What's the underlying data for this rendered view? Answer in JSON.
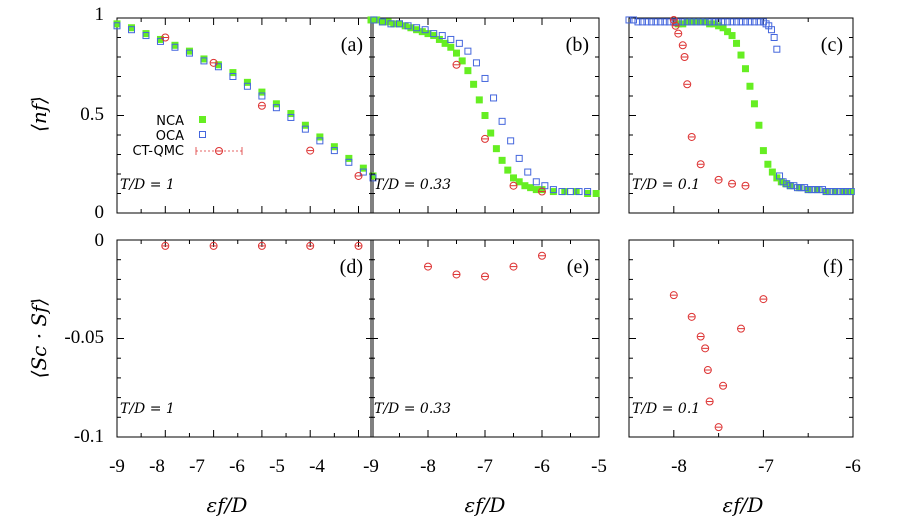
{
  "chart_data": [
    {
      "id": "a",
      "type": "scatter",
      "tag": "(a)",
      "temperature_label": "T/D = 1",
      "xlim": [
        -9,
        -3.7
      ],
      "ylim": [
        0,
        1
      ],
      "series": [
        {
          "name": "NCA",
          "points": [
            [
              -9.0,
              0.97
            ],
            [
              -8.7,
              0.95
            ],
            [
              -8.4,
              0.92
            ],
            [
              -8.1,
              0.89
            ],
            [
              -7.8,
              0.86
            ],
            [
              -7.5,
              0.83
            ],
            [
              -7.2,
              0.79
            ],
            [
              -6.9,
              0.76
            ],
            [
              -6.6,
              0.72
            ],
            [
              -6.3,
              0.67
            ],
            [
              -6.0,
              0.62
            ],
            [
              -5.7,
              0.56
            ],
            [
              -5.4,
              0.51
            ],
            [
              -5.1,
              0.45
            ],
            [
              -4.8,
              0.39
            ],
            [
              -4.5,
              0.34
            ],
            [
              -4.2,
              0.28
            ],
            [
              -3.9,
              0.23
            ],
            [
              -3.7,
              0.19
            ]
          ]
        },
        {
          "name": "OCA",
          "points": [
            [
              -9.0,
              0.96
            ],
            [
              -8.7,
              0.94
            ],
            [
              -8.4,
              0.91
            ],
            [
              -8.1,
              0.88
            ],
            [
              -7.8,
              0.85
            ],
            [
              -7.5,
              0.82
            ],
            [
              -7.2,
              0.78
            ],
            [
              -6.9,
              0.75
            ],
            [
              -6.6,
              0.7
            ],
            [
              -6.3,
              0.65
            ],
            [
              -6.0,
              0.6
            ],
            [
              -5.7,
              0.54
            ],
            [
              -5.4,
              0.49
            ],
            [
              -5.1,
              0.43
            ],
            [
              -4.8,
              0.37
            ],
            [
              -4.5,
              0.32
            ],
            [
              -4.2,
              0.26
            ],
            [
              -3.9,
              0.21
            ],
            [
              -3.7,
              0.18
            ]
          ]
        },
        {
          "name": "CT-QMC",
          "points": [
            [
              -8.0,
              0.9
            ],
            [
              -7.0,
              0.77
            ],
            [
              -6.0,
              0.55
            ],
            [
              -5.0,
              0.32
            ],
            [
              -4.0,
              0.19
            ]
          ]
        }
      ]
    },
    {
      "id": "b",
      "type": "scatter",
      "tag": "(b)",
      "temperature_label": "T/D = 0.33",
      "xlim": [
        -9,
        -5
      ],
      "ylim": [
        0,
        1
      ],
      "series": [
        {
          "name": "NCA",
          "points": [
            [
              -9.0,
              0.99
            ],
            [
              -8.9,
              0.99
            ],
            [
              -8.8,
              0.98
            ],
            [
              -8.7,
              0.98
            ],
            [
              -8.6,
              0.97
            ],
            [
              -8.5,
              0.97
            ],
            [
              -8.4,
              0.96
            ],
            [
              -8.3,
              0.95
            ],
            [
              -8.2,
              0.94
            ],
            [
              -8.1,
              0.93
            ],
            [
              -8.0,
              0.92
            ],
            [
              -7.9,
              0.91
            ],
            [
              -7.8,
              0.89
            ],
            [
              -7.7,
              0.87
            ],
            [
              -7.6,
              0.85
            ],
            [
              -7.5,
              0.82
            ],
            [
              -7.4,
              0.78
            ],
            [
              -7.3,
              0.73
            ],
            [
              -7.2,
              0.66
            ],
            [
              -7.1,
              0.58
            ],
            [
              -7.0,
              0.5
            ],
            [
              -6.9,
              0.41
            ],
            [
              -6.8,
              0.33
            ],
            [
              -6.7,
              0.27
            ],
            [
              -6.6,
              0.22
            ],
            [
              -6.5,
              0.18
            ],
            [
              -6.4,
              0.16
            ],
            [
              -6.3,
              0.14
            ],
            [
              -6.2,
              0.13
            ],
            [
              -6.1,
              0.12
            ],
            [
              -6.0,
              0.12
            ],
            [
              -5.8,
              0.11
            ],
            [
              -5.6,
              0.11
            ],
            [
              -5.4,
              0.11
            ],
            [
              -5.2,
              0.1
            ],
            [
              -5.05,
              0.1
            ]
          ]
        },
        {
          "name": "OCA",
          "points": [
            [
              -8.95,
              0.99
            ],
            [
              -8.8,
              0.98
            ],
            [
              -8.65,
              0.97
            ],
            [
              -8.5,
              0.97
            ],
            [
              -8.35,
              0.96
            ],
            [
              -8.2,
              0.95
            ],
            [
              -8.05,
              0.94
            ],
            [
              -7.9,
              0.92
            ],
            [
              -7.75,
              0.91
            ],
            [
              -7.6,
              0.89
            ],
            [
              -7.45,
              0.87
            ],
            [
              -7.3,
              0.83
            ],
            [
              -7.15,
              0.77
            ],
            [
              -7.0,
              0.69
            ],
            [
              -6.85,
              0.59
            ],
            [
              -6.7,
              0.47
            ],
            [
              -6.55,
              0.37
            ],
            [
              -6.4,
              0.28
            ],
            [
              -6.25,
              0.21
            ],
            [
              -6.1,
              0.16
            ],
            [
              -5.95,
              0.14
            ],
            [
              -5.8,
              0.12
            ],
            [
              -5.65,
              0.11
            ],
            [
              -5.5,
              0.11
            ],
            [
              -5.35,
              0.11
            ],
            [
              -5.2,
              0.11
            ]
          ]
        },
        {
          "name": "CT-QMC",
          "points": [
            [
              -7.5,
              0.76
            ],
            [
              -7.0,
              0.38
            ],
            [
              -6.5,
              0.14
            ],
            [
              -6.0,
              0.11
            ]
          ]
        }
      ]
    },
    {
      "id": "c",
      "type": "scatter",
      "tag": "(c)",
      "temperature_label": "T/D = 0.1",
      "xlim": [
        -8.5,
        -6
      ],
      "ylim": [
        0,
        1
      ],
      "series": [
        {
          "name": "NCA",
          "points": [
            [
              -7.95,
              0.97
            ],
            [
              -7.9,
              0.97
            ],
            [
              -7.85,
              0.98
            ],
            [
              -7.8,
              0.98
            ],
            [
              -7.75,
              0.98
            ],
            [
              -7.7,
              0.98
            ],
            [
              -7.65,
              0.98
            ],
            [
              -7.6,
              0.97
            ],
            [
              -7.55,
              0.97
            ],
            [
              -7.5,
              0.96
            ],
            [
              -7.45,
              0.95
            ],
            [
              -7.4,
              0.93
            ],
            [
              -7.35,
              0.91
            ],
            [
              -7.3,
              0.87
            ],
            [
              -7.25,
              0.81
            ],
            [
              -7.2,
              0.74
            ],
            [
              -7.15,
              0.65
            ],
            [
              -7.1,
              0.56
            ],
            [
              -7.05,
              0.45
            ],
            [
              -7.0,
              0.32
            ],
            [
              -6.95,
              0.25
            ],
            [
              -6.9,
              0.21
            ],
            [
              -6.85,
              0.18
            ],
            [
              -6.8,
              0.16
            ],
            [
              -6.75,
              0.15
            ],
            [
              -6.7,
              0.14
            ],
            [
              -6.6,
              0.13
            ],
            [
              -6.5,
              0.12
            ],
            [
              -6.4,
              0.12
            ],
            [
              -6.3,
              0.11
            ],
            [
              -6.2,
              0.11
            ],
            [
              -6.1,
              0.11
            ],
            [
              -6.02,
              0.11
            ]
          ]
        },
        {
          "name": "OCA",
          "points": [
            [
              -8.5,
              0.99
            ],
            [
              -8.45,
              0.99
            ],
            [
              -8.4,
              0.98
            ],
            [
              -8.35,
              0.98
            ],
            [
              -8.3,
              0.98
            ],
            [
              -8.25,
              0.98
            ],
            [
              -8.2,
              0.98
            ],
            [
              -8.15,
              0.98
            ],
            [
              -8.1,
              0.98
            ],
            [
              -8.05,
              0.98
            ],
            [
              -8.0,
              0.98
            ],
            [
              -7.95,
              0.98
            ],
            [
              -7.9,
              0.98
            ],
            [
              -7.85,
              0.98
            ],
            [
              -7.8,
              0.98
            ],
            [
              -7.75,
              0.98
            ],
            [
              -7.7,
              0.98
            ],
            [
              -7.65,
              0.98
            ],
            [
              -7.6,
              0.98
            ],
            [
              -7.55,
              0.98
            ],
            [
              -7.5,
              0.98
            ],
            [
              -7.45,
              0.98
            ],
            [
              -7.4,
              0.98
            ],
            [
              -7.35,
              0.98
            ],
            [
              -7.3,
              0.98
            ],
            [
              -7.25,
              0.98
            ],
            [
              -7.2,
              0.98
            ],
            [
              -7.15,
              0.98
            ],
            [
              -7.1,
              0.98
            ],
            [
              -7.05,
              0.98
            ],
            [
              -7.0,
              0.98
            ],
            [
              -6.97,
              0.97
            ],
            [
              -6.94,
              0.96
            ],
            [
              -6.91,
              0.94
            ],
            [
              -6.88,
              0.9
            ],
            [
              -6.85,
              0.84
            ],
            [
              -6.82,
              0.19
            ],
            [
              -6.78,
              0.16
            ],
            [
              -6.74,
              0.15
            ],
            [
              -6.7,
              0.14
            ],
            [
              -6.66,
              0.14
            ],
            [
              -6.62,
              0.13
            ],
            [
              -6.58,
              0.13
            ],
            [
              -6.54,
              0.13
            ],
            [
              -6.5,
              0.12
            ],
            [
              -6.46,
              0.12
            ],
            [
              -6.42,
              0.12
            ],
            [
              -6.38,
              0.12
            ],
            [
              -6.34,
              0.12
            ],
            [
              -6.3,
              0.11
            ],
            [
              -6.26,
              0.11
            ],
            [
              -6.22,
              0.11
            ],
            [
              -6.18,
              0.11
            ],
            [
              -6.14,
              0.11
            ],
            [
              -6.1,
              0.11
            ],
            [
              -6.06,
              0.11
            ],
            [
              -6.02,
              0.11
            ]
          ]
        },
        {
          "name": "CT-QMC",
          "points": [
            [
              -8.0,
              0.99
            ],
            [
              -7.98,
              0.96
            ],
            [
              -7.95,
              0.92
            ],
            [
              -7.9,
              0.86
            ],
            [
              -7.88,
              0.8
            ],
            [
              -7.85,
              0.66
            ],
            [
              -7.8,
              0.39
            ],
            [
              -7.7,
              0.25
            ],
            [
              -7.5,
              0.17
            ],
            [
              -7.35,
              0.15
            ],
            [
              -7.2,
              0.14
            ]
          ]
        }
      ]
    },
    {
      "id": "d",
      "type": "scatter",
      "tag": "(d)",
      "temperature_label": "T/D = 1",
      "xlim": [
        -9,
        -3.7
      ],
      "ylim": [
        -0.1,
        0
      ],
      "series": [
        {
          "name": "CT-QMC",
          "points": [
            [
              -8.0,
              -0.003
            ],
            [
              -7.0,
              -0.003
            ],
            [
              -6.0,
              -0.003
            ],
            [
              -5.0,
              -0.003
            ],
            [
              -4.0,
              -0.003
            ]
          ]
        }
      ]
    },
    {
      "id": "e",
      "type": "scatter",
      "tag": "(e)",
      "temperature_label": "T/D = 0.33",
      "xlim": [
        -9,
        -5
      ],
      "ylim": [
        -0.1,
        0
      ],
      "series": [
        {
          "name": "CT-QMC",
          "points": [
            [
              -8.0,
              -0.0135
            ],
            [
              -7.5,
              -0.0175
            ],
            [
              -7.0,
              -0.0185
            ],
            [
              -6.5,
              -0.0135
            ],
            [
              -6.0,
              -0.008
            ]
          ]
        }
      ]
    },
    {
      "id": "f",
      "type": "scatter",
      "tag": "(f)",
      "temperature_label": "T/D = 0.1",
      "xlim": [
        -8.5,
        -6
      ],
      "ylim": [
        -0.1,
        0
      ],
      "series": [
        {
          "name": "CT-QMC",
          "points": [
            [
              -8.0,
              -0.028
            ],
            [
              -7.8,
              -0.039
            ],
            [
              -7.7,
              -0.049
            ],
            [
              -7.65,
              -0.055
            ],
            [
              -7.62,
              -0.066
            ],
            [
              -7.6,
              -0.082
            ],
            [
              -7.5,
              -0.095
            ],
            [
              -7.45,
              -0.074
            ],
            [
              -7.25,
              -0.045
            ],
            [
              -7.0,
              -0.03
            ]
          ]
        }
      ]
    }
  ],
  "axes": {
    "top_ylabel": "⟨nf⟩",
    "bottom_ylabel": "⟨Sc · Sf⟩",
    "xlabel": "εf/D",
    "top_yticks": [
      "1",
      "0.5",
      "0"
    ],
    "bottom_yticks": [
      "0",
      "-0.05",
      "-0.1"
    ],
    "xticks_left": [
      "-9",
      "-8",
      "-7",
      "-6",
      "-5",
      "-4"
    ],
    "xticks_middle": [
      "-9",
      "-8",
      "-7",
      "-6",
      "-5"
    ],
    "xticks_right": [
      "-8",
      "-7",
      "-6"
    ]
  },
  "legend": {
    "entries": [
      "NCA",
      "OCA",
      "CT-QMC"
    ],
    "placement": "panel-a-middle-left"
  },
  "colors": {
    "NCA": "#66ee22",
    "OCA": "#4466dd",
    "CT-QMC": "#dd3333",
    "axis": "#000000"
  }
}
